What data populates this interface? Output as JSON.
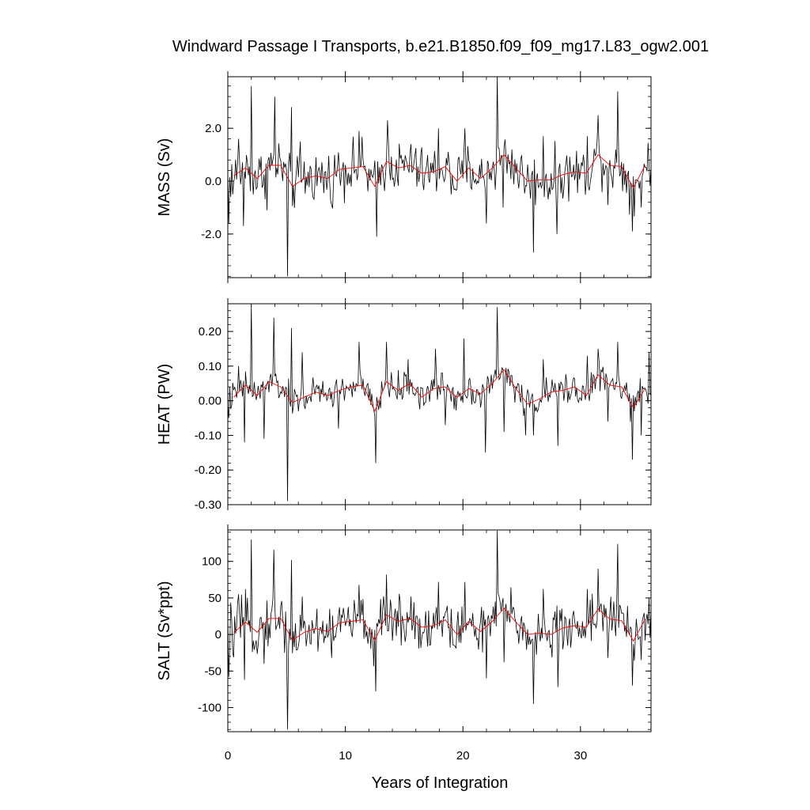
{
  "chart_data": {
    "type": "line",
    "title": "Windward Passage I Transports, b.e21.B1850.f09_f09_mg17.L83_ogw2.001",
    "xlabel": "Years of Integration",
    "x_ticks": [
      0,
      10,
      20,
      30
    ],
    "x_tick_labels": [
      "0",
      "10",
      "20",
      "30"
    ],
    "xlim": [
      0,
      36
    ],
    "grid": false,
    "series_colors": {
      "monthly": "#000000",
      "annual": "#ff0000"
    },
    "panels": [
      {
        "ylabel": "MASS (Sv)",
        "ylim": [
          -3.65,
          3.95
        ],
        "y_ticks": [
          -2.0,
          0.0,
          2.0
        ],
        "y_tick_labels": [
          "-2.0",
          "0.0",
          "2.0"
        ],
        "y_minor_step": 0.4,
        "annual_x": [
          0.5,
          1.5,
          2.5,
          3.5,
          4.5,
          5.5,
          6.5,
          7.5,
          8.5,
          9.5,
          10.5,
          11.5,
          12.5,
          13.5,
          14.5,
          15.5,
          16.5,
          17.5,
          18.5,
          19.5,
          20.5,
          21.5,
          22.5,
          23.5,
          24.5,
          25.5,
          26.5,
          27.5,
          28.5,
          29.5,
          30.5,
          31.5,
          32.5,
          33.5,
          34.5,
          35.5
        ],
        "annual_values": [
          0.2,
          0.5,
          0.1,
          0.6,
          0.6,
          -0.2,
          0.1,
          0.2,
          0.1,
          0.45,
          0.5,
          0.55,
          -0.2,
          0.75,
          0.5,
          0.6,
          0.3,
          0.35,
          0.55,
          0.0,
          0.5,
          0.1,
          0.5,
          1.0,
          0.5,
          0.0,
          0.05,
          0.05,
          0.25,
          0.35,
          0.3,
          1.0,
          0.6,
          0.55,
          -0.25,
          0.6
        ],
        "peaks": [
          [
            0.1,
            -1.6
          ],
          [
            0.4,
            -0.5
          ],
          [
            0.9,
            1.6
          ],
          [
            1.3,
            -1.7
          ],
          [
            2.0,
            3.6
          ],
          [
            3.3,
            -1.1
          ],
          [
            4.0,
            3.2
          ],
          [
            5.1,
            -3.6
          ],
          [
            5.4,
            2.8
          ],
          [
            6.2,
            1.5
          ],
          [
            8.8,
            -0.9
          ],
          [
            11.2,
            1.9
          ],
          [
            12.7,
            -2.1
          ],
          [
            13.6,
            2.3
          ],
          [
            15.6,
            1.4
          ],
          [
            17.9,
            2.0
          ],
          [
            19.0,
            -0.5
          ],
          [
            20.2,
            2.0
          ],
          [
            22.0,
            -1.6
          ],
          [
            22.9,
            4.0
          ],
          [
            23.4,
            -1.0
          ],
          [
            26.0,
            -2.7
          ],
          [
            26.8,
            1.7
          ],
          [
            27.4,
            -0.5
          ],
          [
            28.0,
            -2.0
          ],
          [
            30.6,
            1.7
          ],
          [
            31.5,
            2.5
          ],
          [
            32.3,
            -0.9
          ],
          [
            33.2,
            3.4
          ],
          [
            34.4,
            -1.9
          ],
          [
            35.2,
            -1.0
          ],
          [
            35.8,
            0.6
          ]
        ],
        "noise_amp": 0.9
      },
      {
        "ylabel": "HEAT (PW)",
        "ylim": [
          -0.3,
          0.28
        ],
        "y_ticks": [
          -0.3,
          -0.2,
          -0.1,
          0.0,
          0.1,
          0.2
        ],
        "y_tick_labels": [
          "-0.30",
          "-0.20",
          "-0.10",
          "0.00",
          "0.10",
          "0.20"
        ],
        "y_minor_step": 0.02,
        "annual_x": [
          0.5,
          1.5,
          2.5,
          3.5,
          4.5,
          5.5,
          6.5,
          7.5,
          8.5,
          9.5,
          10.5,
          11.5,
          12.5,
          13.5,
          14.5,
          15.5,
          16.5,
          17.5,
          18.5,
          19.5,
          20.5,
          21.5,
          22.5,
          23.5,
          24.5,
          25.5,
          26.5,
          27.5,
          28.5,
          29.5,
          30.5,
          31.5,
          32.5,
          33.5,
          34.5,
          35.5
        ],
        "annual_values": [
          0.01,
          0.045,
          0.015,
          0.055,
          0.04,
          -0.005,
          0.01,
          0.025,
          0.015,
          0.03,
          0.04,
          0.045,
          -0.03,
          0.055,
          0.03,
          0.05,
          0.01,
          0.035,
          0.04,
          0.01,
          0.035,
          0.02,
          0.05,
          0.09,
          0.035,
          -0.01,
          0.005,
          0.025,
          0.03,
          0.04,
          0.015,
          0.075,
          0.045,
          0.04,
          -0.02,
          0.035
        ],
        "peaks": [
          [
            0.1,
            -0.05
          ],
          [
            0.9,
            0.1
          ],
          [
            1.4,
            -0.12
          ],
          [
            2.0,
            0.28
          ],
          [
            3.1,
            -0.11
          ],
          [
            3.9,
            0.24
          ],
          [
            5.1,
            -0.29
          ],
          [
            5.4,
            0.21
          ],
          [
            6.3,
            0.14
          ],
          [
            9.4,
            -0.08
          ],
          [
            11.2,
            0.17
          ],
          [
            12.6,
            -0.18
          ],
          [
            13.5,
            0.17
          ],
          [
            15.3,
            0.12
          ],
          [
            17.7,
            0.15
          ],
          [
            18.5,
            -0.07
          ],
          [
            20.1,
            0.18
          ],
          [
            21.9,
            -0.15
          ],
          [
            22.9,
            0.27
          ],
          [
            23.5,
            -0.09
          ],
          [
            25.3,
            -0.1
          ],
          [
            26.0,
            -0.1
          ],
          [
            26.8,
            0.12
          ],
          [
            28.1,
            -0.13
          ],
          [
            30.6,
            0.13
          ],
          [
            31.5,
            0.15
          ],
          [
            32.3,
            -0.06
          ],
          [
            33.2,
            0.17
          ],
          [
            34.4,
            -0.17
          ],
          [
            35.2,
            -0.1
          ],
          [
            35.8,
            0.14
          ]
        ],
        "noise_amp": 0.04
      },
      {
        "ylabel": "SALT (Sv*ppt)",
        "ylim": [
          -133,
          143
        ],
        "y_ticks": [
          -100,
          -50,
          0,
          50,
          100
        ],
        "y_tick_labels": [
          "-100",
          "-50",
          "0",
          "50",
          "100"
        ],
        "y_minor_step": 10,
        "annual_x": [
          0.5,
          1.5,
          2.5,
          3.5,
          4.5,
          5.5,
          6.5,
          7.5,
          8.5,
          9.5,
          10.5,
          11.5,
          12.5,
          13.5,
          14.5,
          15.5,
          16.5,
          17.5,
          18.5,
          19.5,
          20.5,
          21.5,
          22.5,
          23.5,
          24.5,
          25.5,
          26.5,
          27.5,
          28.5,
          29.5,
          30.5,
          31.5,
          32.5,
          33.5,
          34.5,
          35.5
        ],
        "annual_values": [
          2,
          17,
          3,
          22,
          22,
          -8,
          3,
          8,
          4,
          16,
          18,
          20,
          -8,
          27,
          18,
          22,
          10,
          12,
          20,
          0,
          18,
          4,
          18,
          36,
          17,
          0,
          2,
          0,
          9,
          12,
          10,
          35,
          21,
          19,
          -9,
          21
        ],
        "peaks": [
          [
            0.1,
            -58
          ],
          [
            0.9,
            55
          ],
          [
            1.4,
            -62
          ],
          [
            2.0,
            130
          ],
          [
            3.1,
            -40
          ],
          [
            3.9,
            116
          ],
          [
            5.1,
            -130
          ],
          [
            5.4,
            102
          ],
          [
            6.3,
            52
          ],
          [
            8.8,
            -32
          ],
          [
            11.2,
            68
          ],
          [
            12.6,
            -78
          ],
          [
            13.5,
            82
          ],
          [
            15.6,
            52
          ],
          [
            17.9,
            72
          ],
          [
            18.9,
            -18
          ],
          [
            20.2,
            72
          ],
          [
            22.0,
            -60
          ],
          [
            22.9,
            142
          ],
          [
            23.5,
            -38
          ],
          [
            26.0,
            -95
          ],
          [
            26.8,
            62
          ],
          [
            27.4,
            -18
          ],
          [
            28.1,
            -72
          ],
          [
            30.6,
            62
          ],
          [
            31.5,
            90
          ],
          [
            32.3,
            -32
          ],
          [
            33.2,
            124
          ],
          [
            34.4,
            -70
          ],
          [
            35.2,
            -35
          ],
          [
            35.8,
            50
          ]
        ],
        "noise_amp": 32
      }
    ]
  }
}
